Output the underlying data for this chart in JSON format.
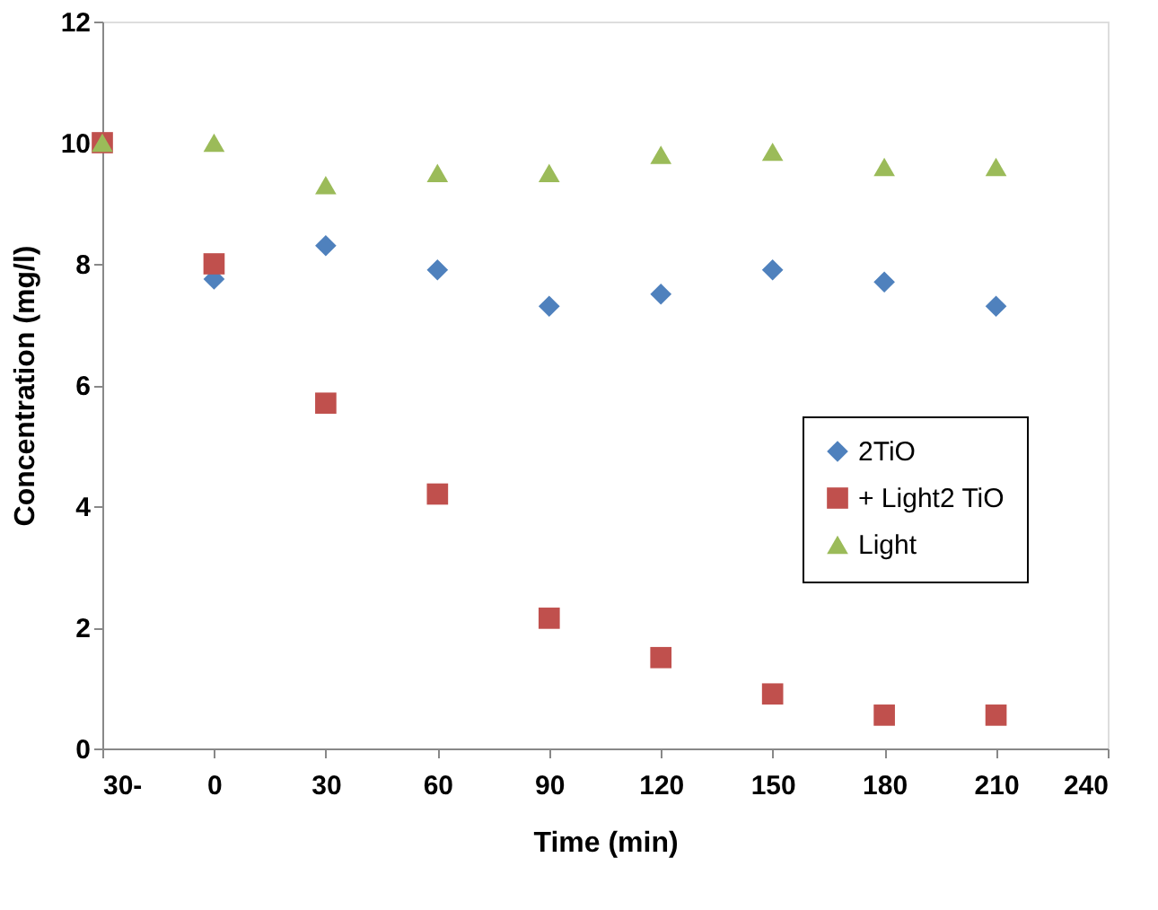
{
  "chart_data": {
    "type": "scatter",
    "xlabel": "Time (min)",
    "ylabel": "Concentration (mg/l)",
    "x": [
      -30,
      0,
      30,
      60,
      90,
      120,
      150,
      180,
      210
    ],
    "series": [
      {
        "name": "2TiO",
        "color": "#4f81bd",
        "marker": "diamond",
        "values": [
          null,
          7.75,
          8.3,
          7.9,
          7.3,
          7.5,
          7.9,
          7.7,
          7.3
        ]
      },
      {
        "name": "+ Light2 TiO",
        "color": "#c0504d",
        "marker": "square",
        "values": [
          10,
          8.0,
          5.7,
          4.2,
          2.15,
          1.5,
          0.9,
          0.55,
          0.55
        ]
      },
      {
        "name": "Light",
        "color": "#9bbb59",
        "marker": "triangle",
        "values": [
          10,
          10,
          9.3,
          9.5,
          9.5,
          9.8,
          9.85,
          9.6,
          9.6
        ]
      }
    ],
    "xlim": [
      -30,
      240
    ],
    "xticks": [
      {
        "value": -30,
        "label": "30-"
      },
      0,
      30,
      60,
      90,
      120,
      150,
      180,
      210,
      240
    ],
    "ylim": [
      0,
      12
    ],
    "yticks": [
      0,
      2,
      4,
      6,
      8,
      10,
      12
    ],
    "grid": false,
    "legend": "right"
  }
}
